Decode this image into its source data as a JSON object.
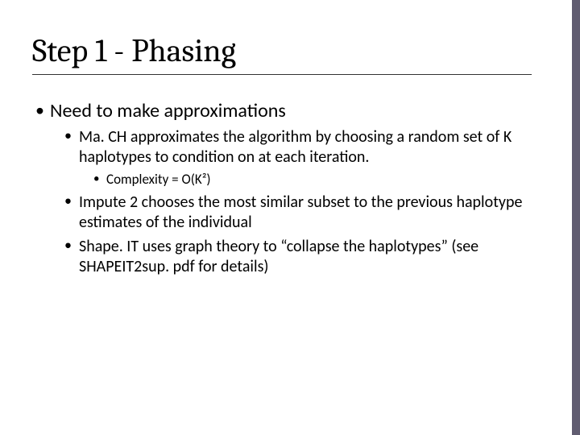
{
  "slide": {
    "title": "Step 1 - Phasing",
    "title_fontsize": 40,
    "title_font": "Cambria",
    "body_font": "Calibri",
    "background_color": "#ffffff",
    "text_color": "#000000",
    "accent_color": "#605c70",
    "underline_color": "#333333",
    "bullets": {
      "lvl1": [
        {
          "text": "Need to make approximations",
          "fontsize": 24,
          "children": [
            {
              "text": "Ma. CH approximates the algorithm by choosing a random set of K haplotypes to condition on at each iteration.",
              "fontsize": 20,
              "children": [
                {
                  "text": "Complexity = O(K²)",
                  "fontsize": 17
                }
              ]
            },
            {
              "text": "Impute 2 chooses the most similar subset to the previous haplotype estimates of the individual",
              "fontsize": 20
            },
            {
              "text": "Shape. IT uses graph theory to “collapse the haplotypes” (see SHAPEIT2sup. pdf for details)",
              "fontsize": 20
            }
          ]
        }
      ]
    }
  }
}
